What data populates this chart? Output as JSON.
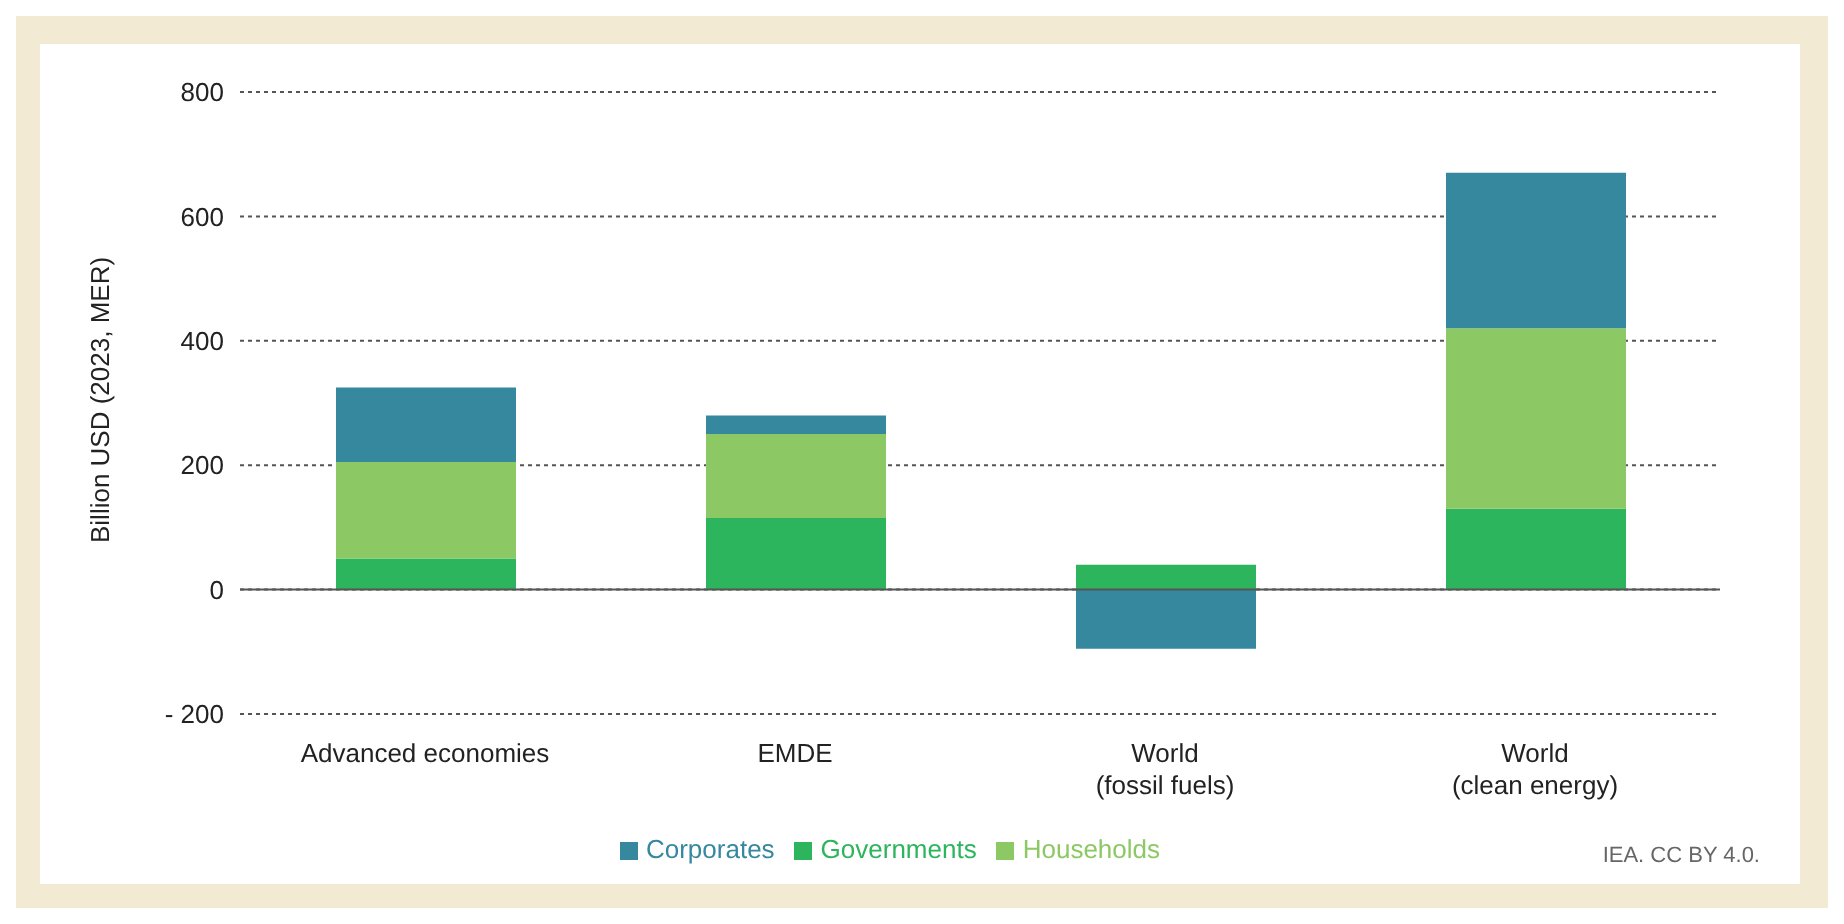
{
  "chart_data": {
    "type": "bar",
    "stacked": true,
    "ylabel": "Billion USD (2023, MER)",
    "categories": [
      "Advanced economies",
      "EMDE",
      "World\n(fossil fuels)",
      "World\n(clean energy)"
    ],
    "series": [
      {
        "name": "Governments",
        "color": "#2db55d",
        "values": [
          50,
          115,
          40,
          130
        ]
      },
      {
        "name": "Households",
        "color": "#8cc864",
        "values": [
          155,
          135,
          0,
          290
        ]
      },
      {
        "name": "Corporates",
        "color": "#35889e",
        "values": [
          120,
          30,
          -95,
          250
        ]
      }
    ],
    "ylim": [
      -200,
      800
    ],
    "yticks": [
      {
        "value": -200,
        "label": "- 200"
      },
      0,
      200,
      400,
      600,
      800
    ],
    "grid": "y",
    "legend": "bottom",
    "annotations": [
      "IEA. CC BY 4.0."
    ]
  }
}
